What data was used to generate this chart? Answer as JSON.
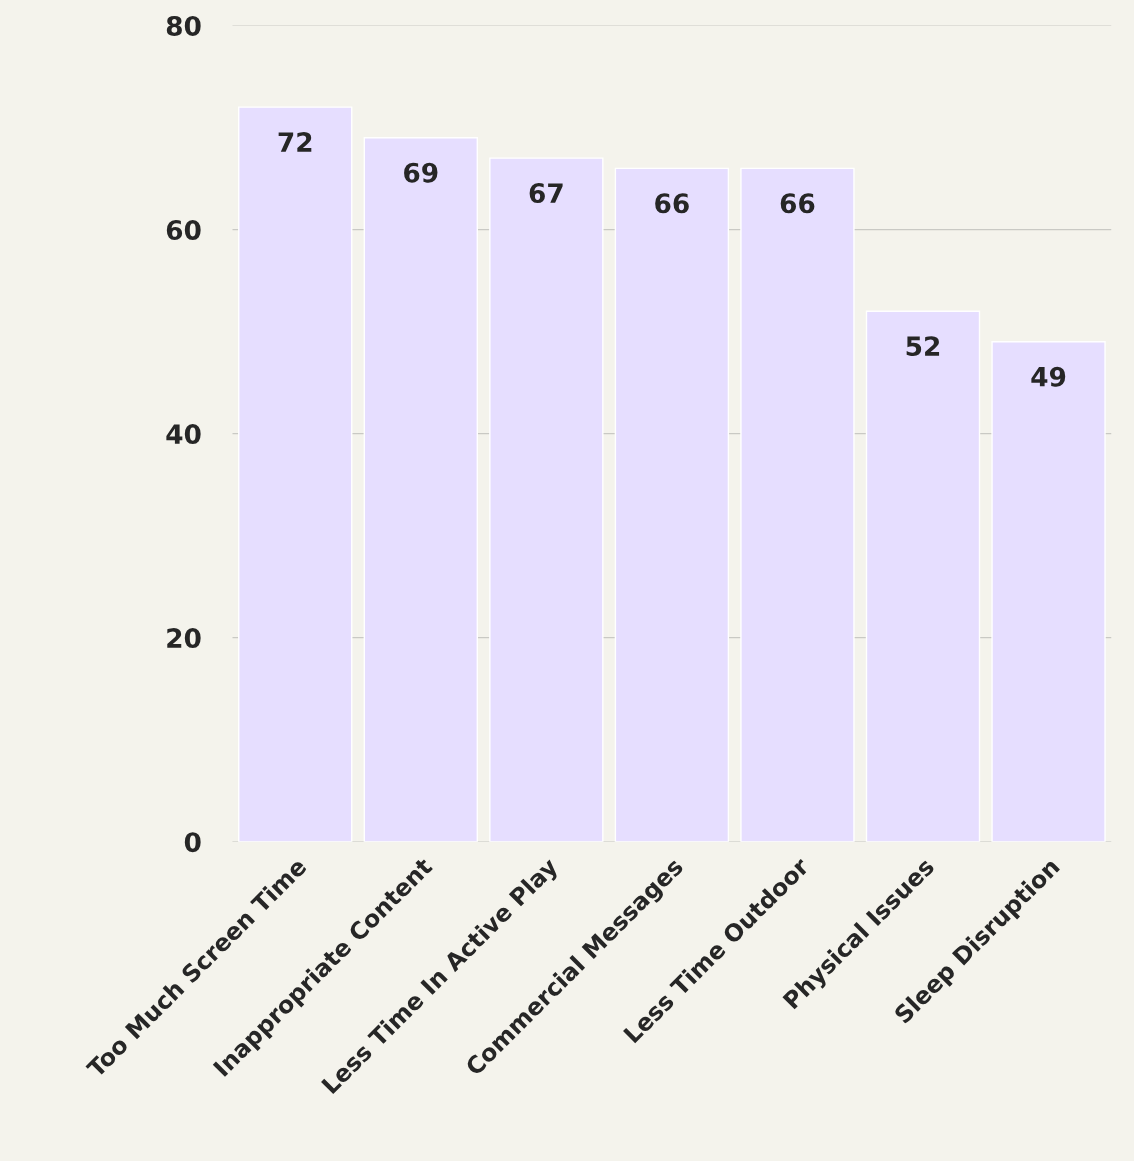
{
  "chart_data": {
    "type": "bar",
    "categories": [
      "Too Much Screen Time",
      "Inappropriate Content",
      "Less Time In Active Play",
      "Commercial Messages",
      "Less Time Outdoor",
      "Physical Issues",
      "Sleep Disruption"
    ],
    "values": [
      72,
      69,
      67,
      66,
      66,
      52,
      49
    ],
    "color": "#e6deff",
    "ylim": [
      0,
      80
    ],
    "yticks": [
      0,
      20,
      40,
      60,
      80
    ],
    "grid": "y",
    "data_labels": true
  }
}
